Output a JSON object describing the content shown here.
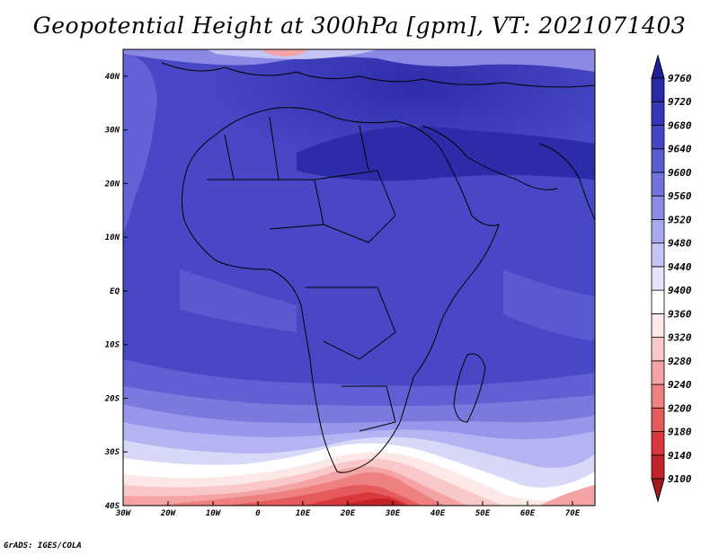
{
  "title": "Geopotential Height at 300hPa [gpm], VT: 2021071403",
  "credit": "GrADS: IGES/COLA",
  "map": {
    "lon_range": [
      -30,
      75
    ],
    "lat_range": [
      -40,
      45
    ],
    "lon_ticks": [
      "30W",
      "20W",
      "10W",
      "0",
      "10E",
      "20E",
      "30E",
      "40E",
      "50E",
      "60E",
      "70E"
    ],
    "lat_ticks": [
      "40S",
      "30S",
      "20S",
      "10S",
      "EQ",
      "10N",
      "20N",
      "30N",
      "40N"
    ]
  },
  "colorbar": {
    "levels": [
      "9100",
      "9140",
      "9180",
      "9200",
      "9240",
      "9280",
      "9320",
      "9360",
      "9400",
      "9440",
      "9480",
      "9520",
      "9560",
      "9600",
      "9640",
      "9680",
      "9720",
      "9760"
    ],
    "colors": [
      "#a31a1f",
      "#c02428",
      "#d8383b",
      "#e55a5a",
      "#ee8080",
      "#f4a4a4",
      "#f9c8c8",
      "#fde8e8",
      "#ffffff",
      "#e4e4fb",
      "#c4c4f5",
      "#a8a8ee",
      "#8c8ce6",
      "#7272dc",
      "#5c5cd2",
      "#4646c4",
      "#3636b6",
      "#2a2aa6",
      "#20209a"
    ]
  }
}
